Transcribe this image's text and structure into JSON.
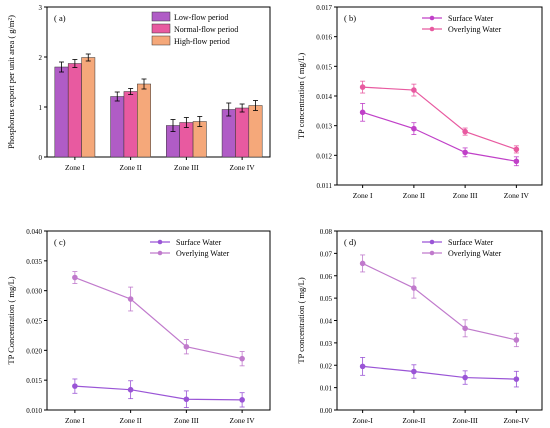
{
  "chart_data": [
    {
      "id": "a",
      "panel_label": "( a)",
      "type": "bar",
      "ylabel": "Phosphorus export per unit area ( g/m²)",
      "xlabel": "",
      "ylim": [
        0,
        3
      ],
      "yticks": [
        0,
        1,
        2,
        3
      ],
      "ytick_labels": [
        "0",
        "1",
        "2",
        "3"
      ],
      "categories": [
        "Zone I",
        "Zone II",
        "Zone III",
        "Zone IV"
      ],
      "legend_position": "top-right",
      "series": [
        {
          "name": "Low-flow period",
          "color": "#b05cc6",
          "values": [
            1.8,
            1.21,
            0.63,
            0.95
          ],
          "errors": [
            0.1,
            0.09,
            0.12,
            0.13
          ]
        },
        {
          "name": "Normal-flow period",
          "color": "#e85aa0",
          "values": [
            1.87,
            1.31,
            0.69,
            0.98
          ],
          "errors": [
            0.08,
            0.06,
            0.1,
            0.08
          ]
        },
        {
          "name": "High-flow period",
          "color": "#f5a87a",
          "values": [
            1.99,
            1.46,
            0.71,
            1.03
          ],
          "errors": [
            0.07,
            0.1,
            0.1,
            0.1
          ]
        }
      ]
    },
    {
      "id": "b",
      "panel_label": "( b)",
      "type": "line",
      "ylabel": "TP concentration ( mg/L)",
      "xlabel": "",
      "ylim": [
        0.011,
        0.017
      ],
      "yticks": [
        0.011,
        0.012,
        0.013,
        0.014,
        0.015,
        0.016,
        0.017
      ],
      "ytick_labels": [
        "0.011",
        "0.012",
        "0.013",
        "0.014",
        "0.015",
        "0.016",
        "0.017"
      ],
      "categories": [
        "Zone I",
        "Zone II",
        "Zone III",
        "Zone IV"
      ],
      "legend_position": "top-right",
      "series": [
        {
          "name": "Surface Water",
          "color": "#c040c8",
          "values": [
            0.01345,
            0.0129,
            0.0121,
            0.0118
          ],
          "errors": [
            0.0003,
            0.0002,
            0.00015,
            0.00015
          ]
        },
        {
          "name": "Overlying Water",
          "color": "#e85aa0",
          "values": [
            0.0143,
            0.0142,
            0.0128,
            0.0122
          ],
          "errors": [
            0.0002,
            0.0002,
            0.00012,
            0.00012
          ]
        }
      ]
    },
    {
      "id": "c",
      "panel_label": "( c)",
      "type": "line",
      "ylabel": "TP Concentration ( mg/L)",
      "xlabel": "",
      "ylim": [
        0.01,
        0.04
      ],
      "yticks": [
        0.01,
        0.015,
        0.02,
        0.025,
        0.03,
        0.035,
        0.04
      ],
      "ytick_labels": [
        "0.010",
        "0.015",
        "0.020",
        "0.025",
        "0.030",
        "0.035",
        "0.040"
      ],
      "categories": [
        "Zone I",
        "Zone II",
        "Zone III",
        "Zone IV"
      ],
      "legend_position": "top-right",
      "series": [
        {
          "name": "Surface Water",
          "color": "#9a55d6",
          "values": [
            0.014,
            0.0134,
            0.0118,
            0.0117
          ],
          "errors": [
            0.0012,
            0.0015,
            0.0014,
            0.0012
          ]
        },
        {
          "name": "Overlying Water",
          "color": "#c07acc",
          "values": [
            0.0322,
            0.0286,
            0.0206,
            0.0186
          ],
          "errors": [
            0.001,
            0.002,
            0.0012,
            0.0012
          ]
        }
      ]
    },
    {
      "id": "d",
      "panel_label": "( d)",
      "type": "line",
      "ylabel": "TP concentration ( mg/L)",
      "xlabel": "",
      "ylim": [
        0,
        0.08
      ],
      "yticks": [
        0,
        0.01,
        0.02,
        0.03,
        0.04,
        0.05,
        0.06,
        0.07,
        0.08
      ],
      "ytick_labels": [
        "0.00",
        "0.01",
        "0.02",
        "0.03",
        "0.04",
        "0.05",
        "0.06",
        "0.07",
        "0.08"
      ],
      "categories": [
        "Zone-I",
        "Zone-II",
        "Zone-III",
        "Zone-IV"
      ],
      "legend_position": "top-right",
      "series": [
        {
          "name": "Surface Water",
          "color": "#9a55d6",
          "values": [
            0.0195,
            0.0172,
            0.0145,
            0.0138
          ],
          "errors": [
            0.004,
            0.003,
            0.003,
            0.0035
          ]
        },
        {
          "name": "Overlying Water",
          "color": "#c07acc",
          "values": [
            0.0655,
            0.0545,
            0.0365,
            0.0313
          ],
          "errors": [
            0.0038,
            0.0045,
            0.0038,
            0.003
          ]
        }
      ]
    }
  ]
}
